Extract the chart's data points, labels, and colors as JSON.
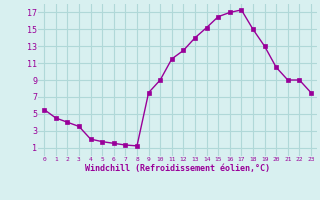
{
  "x": [
    0,
    1,
    2,
    3,
    4,
    5,
    6,
    7,
    8,
    9,
    10,
    11,
    12,
    13,
    14,
    15,
    16,
    17,
    18,
    19,
    20,
    21,
    22,
    23
  ],
  "y": [
    5.5,
    4.5,
    4.0,
    3.5,
    2.0,
    1.7,
    1.5,
    1.3,
    1.2,
    7.5,
    9.0,
    11.5,
    12.5,
    14.0,
    15.2,
    16.5,
    17.0,
    17.3,
    15.0,
    13.0,
    10.5,
    9.0,
    9.0,
    7.5
  ],
  "line_color": "#990099",
  "marker": "s",
  "marker_size": 2.5,
  "bg_color": "#d8f0f0",
  "grid_color": "#b0d8d8",
  "xlabel": "Windchill (Refroidissement éolien,°C)",
  "xlabel_color": "#990099",
  "tick_color": "#990099",
  "xlim": [
    -0.5,
    23.5
  ],
  "ylim": [
    0,
    18
  ],
  "yticks": [
    1,
    3,
    5,
    7,
    9,
    11,
    13,
    15,
    17
  ],
  "xticks": [
    0,
    1,
    2,
    3,
    4,
    5,
    6,
    7,
    8,
    9,
    10,
    11,
    12,
    13,
    14,
    15,
    16,
    17,
    18,
    19,
    20,
    21,
    22,
    23
  ]
}
